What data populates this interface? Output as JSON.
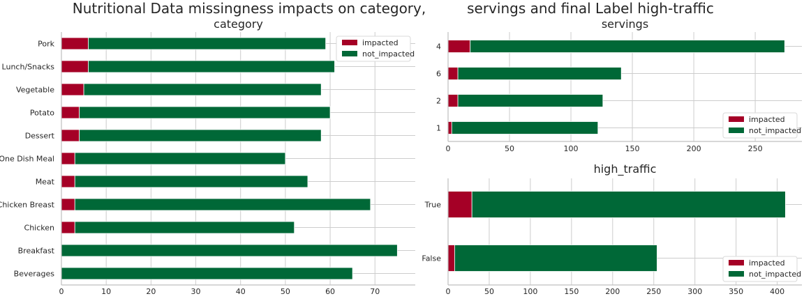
{
  "suptitle_left": "Nutritional Data missingness impacts on category,",
  "suptitle_right": "servings and final Label high-traffic",
  "colors": {
    "impacted": "#a50026",
    "not_impacted": "#006837",
    "grid": "#cccccc",
    "axis": "#bfbfbf"
  },
  "chart_data": [
    {
      "type": "bar",
      "orientation": "horizontal",
      "stacked": true,
      "title": "category",
      "categories": [
        "Beverages",
        "Breakfast",
        "Chicken",
        "Chicken Breast",
        "Meat",
        "One Dish Meal",
        "Dessert",
        "Potato",
        "Vegetable",
        "Lunch/Snacks",
        "Pork"
      ],
      "series": [
        {
          "name": "impacted",
          "values": [
            0,
            0,
            3,
            3,
            3,
            3,
            4,
            4,
            5,
            6,
            6
          ]
        },
        {
          "name": "not_impacted",
          "values": [
            65,
            75,
            49,
            66,
            52,
            47,
            54,
            56,
            53,
            55,
            53
          ]
        }
      ],
      "xlim": [
        0,
        79
      ],
      "xticks": [
        0,
        10,
        20,
        30,
        40,
        50,
        60,
        70
      ],
      "legend": {
        "position": "top-right",
        "labels": [
          "impacted",
          "not_impacted"
        ]
      }
    },
    {
      "type": "bar",
      "orientation": "horizontal",
      "stacked": true,
      "title": "servings",
      "categories": [
        "1",
        "2",
        "6",
        "4"
      ],
      "series": [
        {
          "name": "impacted",
          "values": [
            3,
            8,
            8,
            18
          ]
        },
        {
          "name": "not_impacted",
          "values": [
            119,
            118,
            133,
            256
          ]
        }
      ],
      "xlim": [
        0,
        288
      ],
      "xticks": [
        0,
        50,
        100,
        150,
        200,
        250
      ],
      "legend": {
        "position": "bottom-right",
        "labels": [
          "impacted",
          "not_impacted"
        ]
      }
    },
    {
      "type": "bar",
      "orientation": "horizontal",
      "stacked": true,
      "title": "high_traffic",
      "categories": [
        "False",
        "True"
      ],
      "series": [
        {
          "name": "impacted",
          "values": [
            8,
            29
          ]
        },
        {
          "name": "not_impacted",
          "values": [
            246,
            381
          ]
        }
      ],
      "xlim": [
        0,
        430
      ],
      "xticks": [
        0,
        50,
        100,
        150,
        200,
        250,
        300,
        350,
        400
      ],
      "legend": {
        "position": "bottom-right",
        "labels": [
          "impacted",
          "not_impacted"
        ]
      }
    }
  ]
}
